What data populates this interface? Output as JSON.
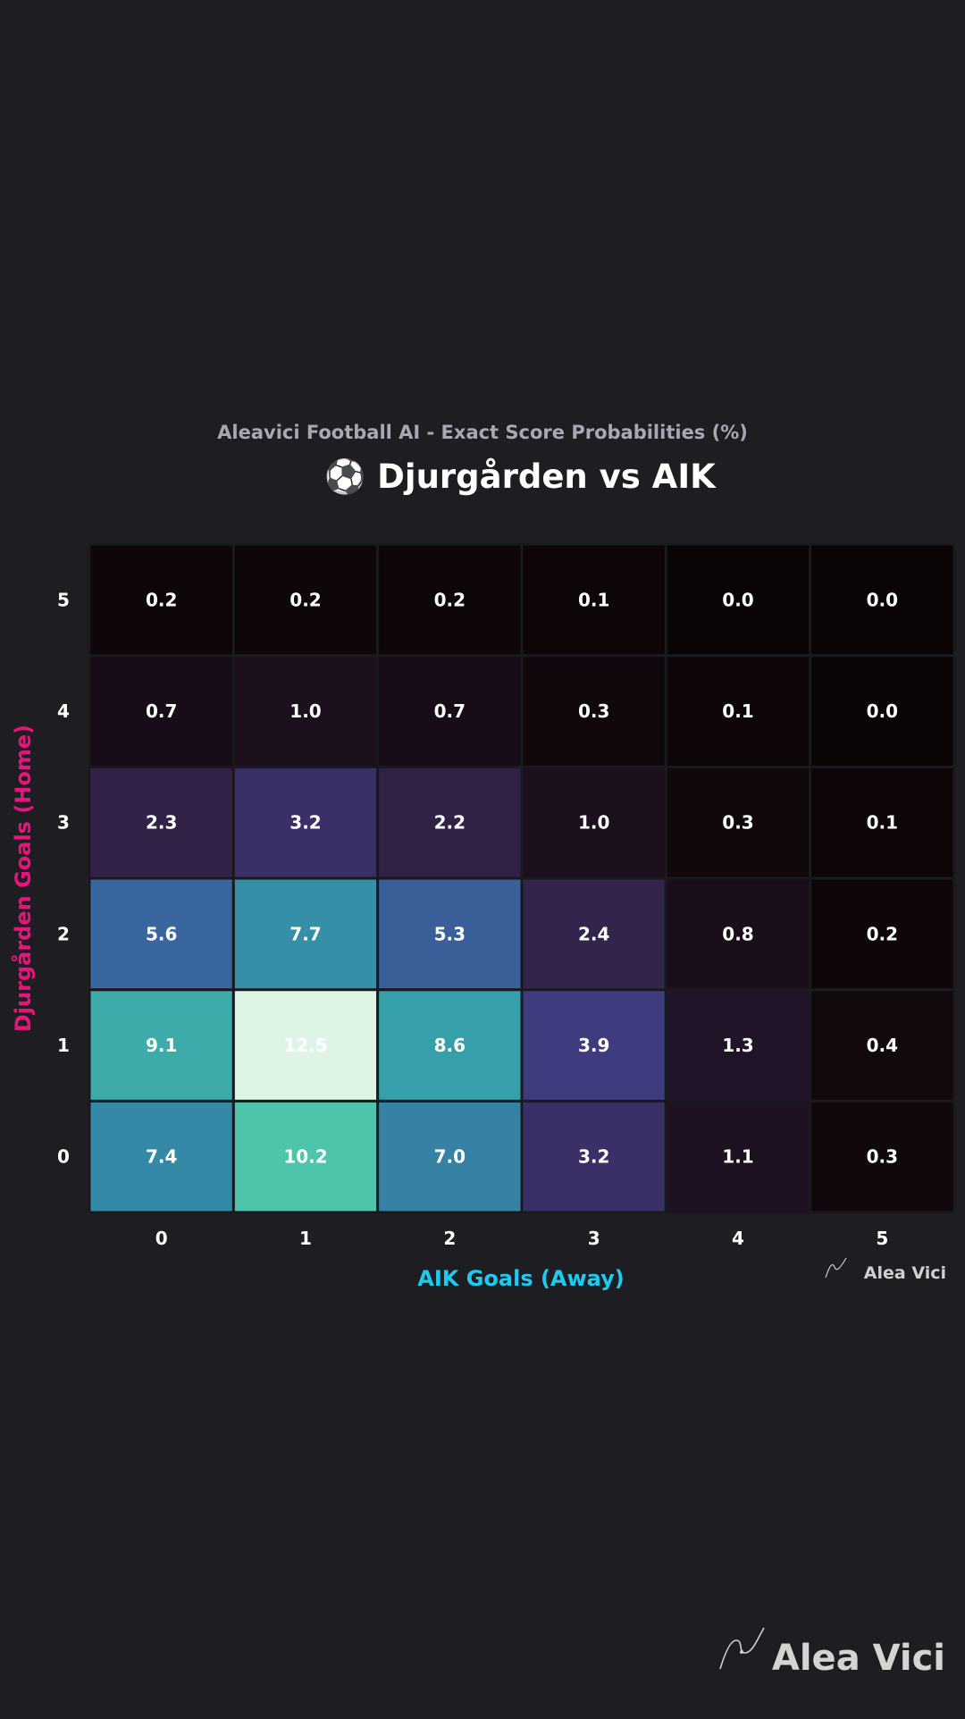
{
  "chart_data": {
    "type": "heatmap",
    "subtitle": "Aleavici Football AI - Exact Score Probabilities (%)",
    "title": "⚽ Djurgården vs AIK",
    "xlabel": "AIK Goals (Away)",
    "ylabel": "Djurgården Goals (Home)",
    "x_categories": [
      "0",
      "1",
      "2",
      "3",
      "4",
      "5"
    ],
    "y_categories": [
      "0",
      "1",
      "2",
      "3",
      "4",
      "5"
    ],
    "values": [
      [
        7.4,
        10.2,
        7.0,
        3.2,
        1.1,
        0.3
      ],
      [
        9.1,
        12.5,
        8.6,
        3.9,
        1.3,
        0.4
      ],
      [
        5.6,
        7.7,
        5.3,
        2.4,
        0.8,
        0.2
      ],
      [
        2.3,
        3.2,
        2.2,
        1.0,
        0.3,
        0.1
      ],
      [
        0.7,
        1.0,
        0.7,
        0.3,
        0.1,
        0.0
      ],
      [
        0.2,
        0.2,
        0.2,
        0.1,
        0.0,
        0.0
      ]
    ],
    "value_format": "0.0",
    "colormap": "mako",
    "grid": false,
    "legend": "none"
  },
  "branding": {
    "watermark_small": "Alea Vici",
    "watermark_large": "Alea Vici"
  },
  "colors": {
    "background": "#1e1d22",
    "subtitle": "#a9a7b3",
    "title": "#ffffff",
    "xlabel": "#1ecbf0",
    "ylabel": "#e6157c",
    "tick": "#ffffff",
    "cell_text": "#ffffff",
    "cell_border": "#1a191e"
  }
}
